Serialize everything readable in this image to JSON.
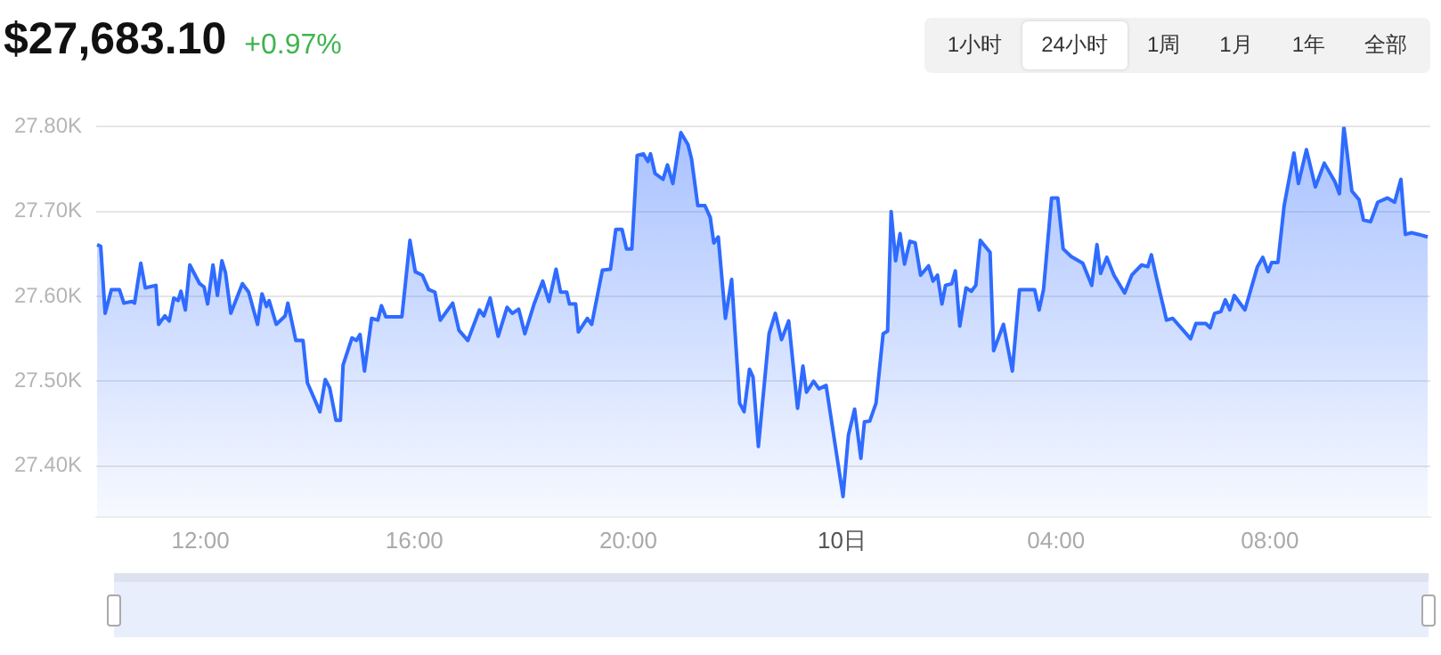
{
  "chart_data": {
    "type": "area",
    "title": "$27,683.10",
    "subtitle": "+0.97%",
    "annotations": [
      "1小时",
      "24小时",
      "1周",
      "1月",
      "1年",
      "全部"
    ],
    "xlim": [
      "--10-09T10:03",
      "--10-10T11:00"
    ],
    "xticks": [
      {
        "value": "--10-09T12:00",
        "label": "12:00"
      },
      {
        "value": "--10-09T16:00",
        "label": "16:00"
      },
      {
        "value": "--10-09T20:00",
        "label": "20:00"
      },
      {
        "value": "--10-10T00:00",
        "label": "10日"
      },
      {
        "value": "--10-10T04:00",
        "label": "04:00"
      },
      {
        "value": "--10-10T08:00",
        "label": "08:00"
      }
    ],
    "ylim": [
      27340,
      27800
    ],
    "yticks": [
      {
        "value": 27400,
        "label": "27.40K"
      },
      {
        "value": 27500,
        "label": "27.50K"
      },
      {
        "value": 27600,
        "label": "27.60K"
      },
      {
        "value": 27700,
        "label": "27.70K"
      },
      {
        "value": 27800,
        "label": "27.80K"
      }
    ],
    "grid": "y",
    "legend": false,
    "marker": "none",
    "line_style": "solid",
    "series": [
      {
        "color": "#2f6bff",
        "x": [
          "--10-09T10:04",
          "--10-09T10:08",
          "--10-09T10:13",
          "--10-09T10:20",
          "--10-09T10:29",
          "--10-09T10:34",
          "--10-09T10:43",
          "--10-09T10:46",
          "--10-09T10:53",
          "--10-09T10:58",
          "--10-09T11:10",
          "--10-09T11:13",
          "--10-09T11:20",
          "--10-09T11:25",
          "--10-09T11:30",
          "--10-09T11:35",
          "--10-09T11:38",
          "--10-09T11:43",
          "--10-09T11:48",
          "--10-09T11:59",
          "--10-09T12:04",
          "--10-09T12:08",
          "--10-09T12:14",
          "--10-09T12:19",
          "--10-09T12:24",
          "--10-09T12:28",
          "--10-09T12:34",
          "--10-09T12:47",
          "--10-09T12:54",
          "--10-09T13:04",
          "--10-09T13:09",
          "--10-09T13:14",
          "--10-09T13:17",
          "--10-09T13:25",
          "--10-09T13:35",
          "--10-09T13:38",
          "--10-09T13:47",
          "--10-09T13:55",
          "--10-09T14:00",
          "--10-09T14:14",
          "--10-09T14:20",
          "--10-09T14:25",
          "--10-09T14:32",
          "--10-09T14:37",
          "--10-09T14:40",
          "--10-09T14:50",
          "--10-09T14:55",
          "--10-09T14:59",
          "--10-09T15:04",
          "--10-09T15:12",
          "--10-09T15:19",
          "--10-09T15:23",
          "--10-09T15:28",
          "--10-09T15:46",
          "--10-09T15:55",
          "--10-09T16:01",
          "--10-09T16:09",
          "--10-09T16:16",
          "--10-09T16:23",
          "--10-09T16:29",
          "--10-09T16:43",
          "--10-09T16:50",
          "--10-09T17:00",
          "--10-09T17:13",
          "--10-09T17:18",
          "--10-09T17:25",
          "--10-09T17:34",
          "--10-09T17:44",
          "--10-09T17:50",
          "--10-09T17:57",
          "--10-09T18:04",
          "--10-09T18:14",
          "--10-09T18:24",
          "--10-09T18:31",
          "--10-09T18:39",
          "--10-09T18:44",
          "--10-09T18:51",
          "--10-09T18:54",
          "--10-09T19:01",
          "--10-09T19:04",
          "--10-09T19:14",
          "--10-09T19:19",
          "--10-09T19:31",
          "--10-09T19:40",
          "--10-09T19:46",
          "--10-09T19:53",
          "--10-09T19:58",
          "--10-09T20:04",
          "--10-09T20:10",
          "--10-09T20:17",
          "--10-09T20:22",
          "--10-09T20:25",
          "--10-09T20:30",
          "--10-09T20:39",
          "--10-09T20:44",
          "--10-09T20:50",
          "--10-09T20:59",
          "--10-09T21:07",
          "--10-09T21:11",
          "--10-09T21:18",
          "--10-09T21:26",
          "--10-09T21:32",
          "--10-09T21:36",
          "--10-09T21:41",
          "--10-09T21:49",
          "--10-09T21:56",
          "--10-09T22:05",
          "--10-09T22:10",
          "--10-09T22:16",
          "--10-09T22:20",
          "--10-09T22:26",
          "--10-09T22:38",
          "--10-09T22:45",
          "--10-09T22:52",
          "--10-09T23:00",
          "--10-09T23:10",
          "--10-09T23:16",
          "--10-09T23:20",
          "--10-09T23:28",
          "--10-09T23:34",
          "--10-09T23:42",
          "--10-10T00:01",
          "--10-10T00:07",
          "--10-10T00:14",
          "--10-10T00:21",
          "--10-10T00:25",
          "--10-10T00:31",
          "--10-10T00:38",
          "--10-10T00:46",
          "--10-10T00:51",
          "--10-10T00:55",
          "--10-10T01:00",
          "--10-10T01:05",
          "--10-10T01:10",
          "--10-10T01:16",
          "--10-10T01:22",
          "--10-10T01:28",
          "--10-10T01:37",
          "--10-10T01:42",
          "--10-10T01:47",
          "--10-10T01:52",
          "--10-10T01:56",
          "--10-10T02:03",
          "--10-10T02:07",
          "--10-10T02:12",
          "--10-10T02:19",
          "--10-10T02:25",
          "--10-10T02:30",
          "--10-10T02:35",
          "--10-10T02:46",
          "--10-10T02:50",
          "--10-10T03:01",
          "--10-10T03:11",
          "--10-10T03:19",
          "--10-10T03:36",
          "--10-10T03:41",
          "--10-10T03:46",
          "--10-10T03:55",
          "--10-10T04:02",
          "--10-10T04:08",
          "--10-10T04:17",
          "--10-10T04:30",
          "--10-10T04:40",
          "--10-10T04:46",
          "--10-10T04:50",
          "--10-10T04:57",
          "--10-10T05:05",
          "--10-10T05:17",
          "--10-10T05:25",
          "--10-10T05:36",
          "--10-10T05:43",
          "--10-10T05:47",
          "--10-10T05:52",
          "--10-10T06:04",
          "--10-10T06:11",
          "--10-10T06:31",
          "--10-10T06:37",
          "--10-10T06:48",
          "--10-10T06:53",
          "--10-10T06:58",
          "--10-10T07:05",
          "--10-10T07:10",
          "--10-10T07:15",
          "--10-10T07:20",
          "--10-10T07:32",
          "--10-10T07:46",
          "--10-10T07:52",
          "--10-10T07:58",
          "--10-10T08:02",
          "--10-10T08:09",
          "--10-10T08:16",
          "--10-10T08:27",
          "--10-10T08:32",
          "--10-10T08:41",
          "--10-10T08:51",
          "--10-10T09:01",
          "--10-10T09:13",
          "--10-10T09:18",
          "--10-10T09:23",
          "--10-10T09:32",
          "--10-10T09:40",
          "--10-10T09:45",
          "--10-10T09:53",
          "--10-10T10:01",
          "--10-10T10:12",
          "--10-10T10:20",
          "--10-10T10:27",
          "--10-10T10:32",
          "--10-10T10:39",
          "--10-10T10:47",
          "--10-10T10:57"
        ],
        "values": [
          27661,
          27659,
          27580,
          27608,
          27608,
          27592,
          27594,
          27592,
          27639,
          27610,
          27613,
          27567,
          27577,
          27571,
          27598,
          27595,
          27606,
          27584,
          27637,
          27615,
          27611,
          27591,
          27637,
          27601,
          27642,
          27628,
          27580,
          27615,
          27605,
          27567,
          27603,
          27588,
          27595,
          27567,
          27577,
          27592,
          27548,
          27548,
          27498,
          27464,
          27502,
          27492,
          27454,
          27454,
          27519,
          27551,
          27548,
          27555,
          27512,
          27574,
          27572,
          27589,
          27576,
          27576,
          27666,
          27629,
          27625,
          27608,
          27605,
          27572,
          27592,
          27560,
          27548,
          27584,
          27577,
          27598,
          27553,
          27587,
          27580,
          27585,
          27556,
          27590,
          27618,
          27594,
          27632,
          27605,
          27605,
          27591,
          27591,
          27558,
          27574,
          27567,
          27631,
          27632,
          27679,
          27679,
          27656,
          27656,
          27766,
          27768,
          27759,
          27768,
          27745,
          27738,
          27755,
          27733,
          27793,
          27779,
          27762,
          27707,
          27707,
          27693,
          27663,
          27670,
          27574,
          27620,
          27474,
          27464,
          27514,
          27505,
          27423,
          27556,
          27580,
          27549,
          27571,
          27468,
          27518,
          27487,
          27500,
          27491,
          27495,
          27364,
          27436,
          27467,
          27409,
          27452,
          27453,
          27474,
          27556,
          27559,
          27700,
          27642,
          27674,
          27638,
          27665,
          27663,
          27625,
          27636,
          27618,
          27625,
          27591,
          27613,
          27615,
          27630,
          27565,
          27610,
          27606,
          27613,
          27666,
          27652,
          27536,
          27567,
          27512,
          27608,
          27608,
          27584,
          27608,
          27716,
          27716,
          27656,
          27647,
          27639,
          27613,
          27661,
          27627,
          27646,
          27625,
          27604,
          27625,
          27637,
          27635,
          27649,
          27625,
          27572,
          27574,
          27550,
          27568,
          27568,
          27563,
          27580,
          27582,
          27596,
          27584,
          27601,
          27584,
          27635,
          27646,
          27629,
          27640,
          27640,
          27707,
          27769,
          27733,
          27773,
          27729,
          27757,
          27735,
          27721,
          27800,
          27724,
          27714,
          27690,
          27688,
          27711,
          27716,
          27711,
          27738,
          27673,
          27675,
          27673,
          27670
        ]
      }
    ]
  }
}
